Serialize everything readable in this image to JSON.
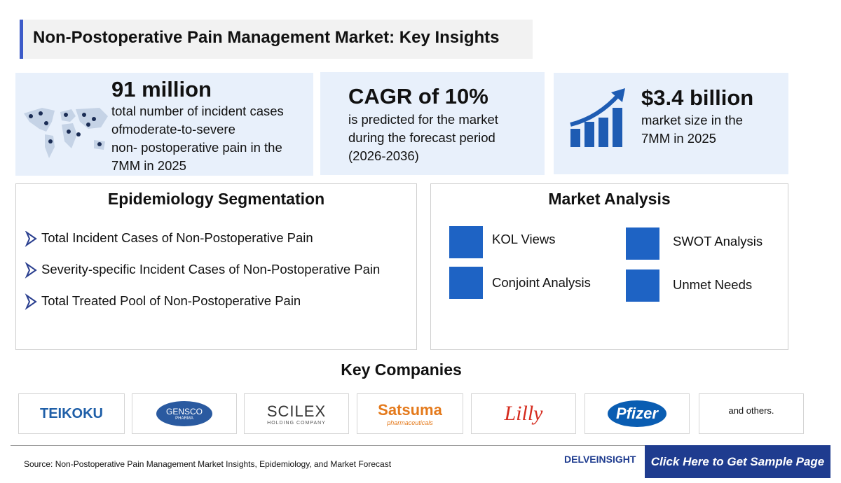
{
  "header": {
    "title": "Non-Postoperative Pain Management Market: Key Insights"
  },
  "stats": [
    {
      "value": "91 million",
      "text": [
        "total number of incident cases",
        "ofmoderate-to-severe",
        "non- postoperative pain in the",
        "7MM in 2025"
      ]
    },
    {
      "value": "CAGR of 10%",
      "text": [
        "is predicted for the market",
        "during the forecast period",
        "(2026-2036)"
      ]
    },
    {
      "value": "$3.4 billion",
      "text": [
        "market size in the",
        "7MM in 2025"
      ]
    }
  ],
  "epidemiology": {
    "title": "Epidemiology Segmentation",
    "items": [
      "Total Incident Cases of Non-Postoperative Pain",
      "Severity-specific Incident Cases of Non-Postoperative Pain",
      "Total Treated Pool of Non-Postoperative Pain"
    ]
  },
  "market_analysis": {
    "title": "Market Analysis",
    "items": [
      "KOL Views",
      "SWOT Analysis",
      "Conjoint Analysis",
      "Unmet Needs"
    ]
  },
  "companies": {
    "title": "Key Companies",
    "logos": [
      {
        "name": "TEIKOKU"
      },
      {
        "name": "GENSCO",
        "sub": "PHARMA"
      },
      {
        "name": "SCILEX",
        "sub": "HOLDING COMPANY"
      },
      {
        "name": "Satsuma",
        "sub": "pharmaceuticals"
      },
      {
        "name": "Lilly"
      },
      {
        "name": "Pfizer"
      }
    ],
    "others": "and others."
  },
  "footer": {
    "source": "Source: Non-Postoperative Pain Management Market Insights, Epidemiology, and Market Forecast",
    "brand": "DELVEINSIGHT",
    "cta": "Click Here to Get Sample Page"
  }
}
